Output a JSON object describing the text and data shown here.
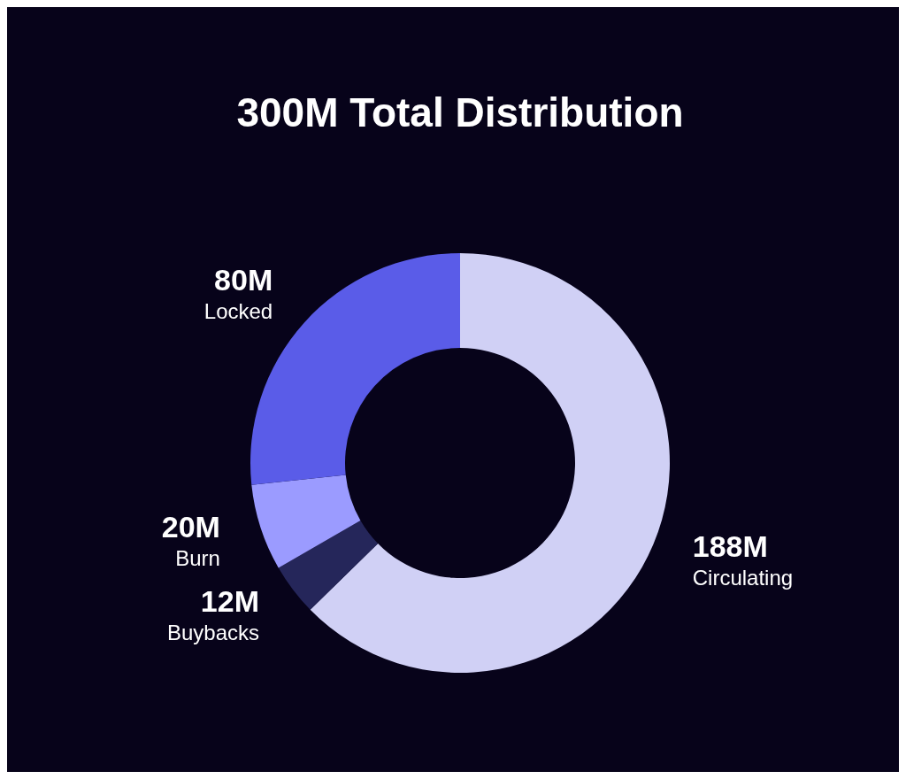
{
  "chart_data": {
    "type": "donut",
    "title": "300M Total Distribution",
    "categories": [
      "Circulating",
      "Buybacks",
      "Burn",
      "Locked"
    ],
    "values": [
      188,
      12,
      20,
      80
    ],
    "value_labels": [
      "188M",
      "12M",
      "20M",
      "80M"
    ],
    "colors": [
      "#d0d0f5",
      "#25265a",
      "#9b9bff",
      "#5a5ce8"
    ]
  }
}
